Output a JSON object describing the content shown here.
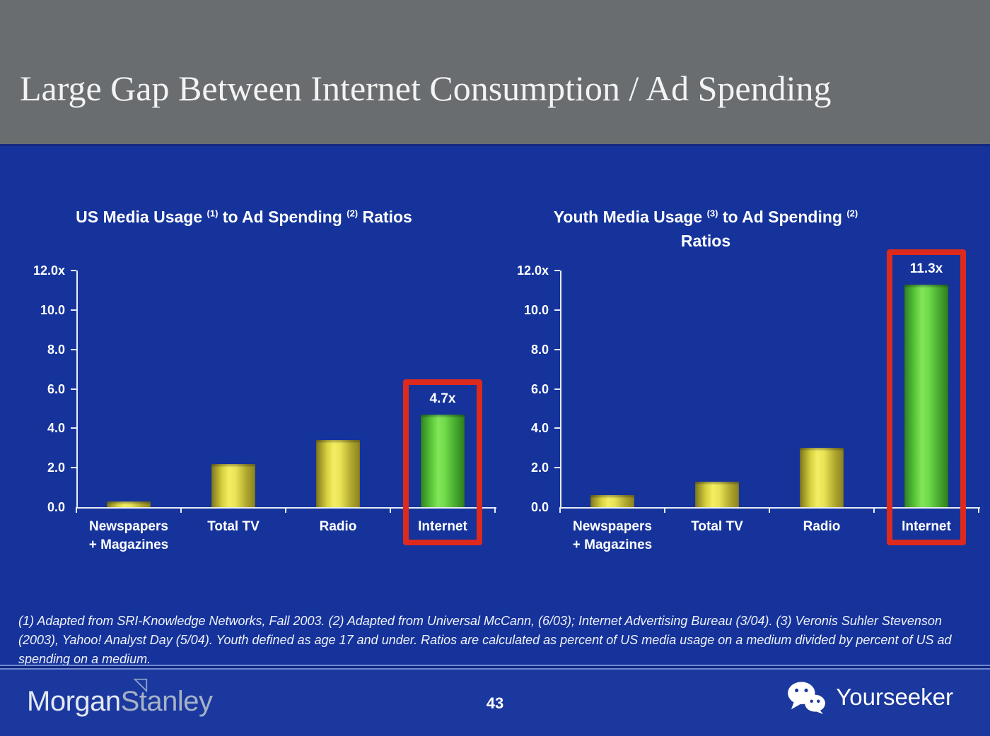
{
  "slide": {
    "title": "Large Gap Between Internet Consumption / Ad Spending",
    "footnote": "(1) Adapted from SRI-Knowledge Networks, Fall 2003.  (2) Adapted from Universal McCann, (6/03); Internet Advertising Bureau (3/04). (3) Veronis Suhler Stevenson (2003), Yahoo! Analyst Day (5/04).  Youth defined as age 17 and under.  Ratios are calculated as percent of US media usage on a medium divided by percent of US ad spending on a medium.",
    "page_number": "43"
  },
  "footer": {
    "brand_left_part1": "Morgan",
    "brand_left_part2": "Stanley",
    "brand_right": "Yourseeker"
  },
  "colors": {
    "background_blue": "#15339b",
    "footer_blue": "#1b389e",
    "header_gray": "#6a6d70",
    "axis_white": "#e8ecf8",
    "bar_yellow_center": "#f3ee63",
    "bar_yellow_edge": "#7d761e",
    "bar_green_center": "#83e659",
    "bar_green_edge": "#2f8220",
    "highlight_red": "#dd2a1d"
  },
  "chart_data": [
    {
      "type": "bar",
      "title": "US Media Usage (1) to Ad Spending (2) Ratios",
      "title_parts": {
        "p1": "US Media Usage ",
        "s1": "(1)",
        "p2": " to Ad Spending ",
        "s2": "(2)",
        "p3": " Ratios"
      },
      "categories": [
        "Newspapers + Magazines",
        "Total TV",
        "Radio",
        "Internet"
      ],
      "category_lines": [
        [
          "Newspapers",
          "+ Magazines"
        ],
        [
          "Total TV"
        ],
        [
          "Radio"
        ],
        [
          "Internet"
        ]
      ],
      "category_ids": [
        "newspapers-magazines",
        "total-tv",
        "radio",
        "internet"
      ],
      "values": [
        0.3,
        2.2,
        3.4,
        4.7
      ],
      "bar_colors": [
        "yellow",
        "yellow",
        "yellow",
        "green"
      ],
      "highlight_index": 3,
      "highlight_label": "4.7x",
      "ylim": [
        0,
        12
      ],
      "yticks": [
        "12.0x",
        "10.0",
        "8.0",
        "6.0",
        "4.0",
        "2.0",
        "0.0"
      ],
      "ytick_values": [
        12,
        10,
        8,
        6,
        4,
        2,
        0
      ],
      "xlabel": "",
      "ylabel": "",
      "grid": false,
      "legend": false
    },
    {
      "type": "bar",
      "title": "Youth Media Usage (3) to Ad Spending (2) Ratios",
      "title_parts": {
        "p1": "Youth Media Usage ",
        "s1": "(3)",
        "p2": " to Ad Spending ",
        "s2": "(2)",
        "p3": ""
      },
      "title_line2": "Ratios",
      "categories": [
        "Newspapers + Magazines",
        "Total TV",
        "Radio",
        "Internet"
      ],
      "category_lines": [
        [
          "Newspapers",
          "+ Magazines"
        ],
        [
          "Total TV"
        ],
        [
          "Radio"
        ],
        [
          "Internet"
        ]
      ],
      "category_ids": [
        "newspapers-magazines",
        "total-tv",
        "radio",
        "internet"
      ],
      "values": [
        0.6,
        1.3,
        3.0,
        11.3
      ],
      "bar_colors": [
        "yellow",
        "yellow",
        "yellow",
        "green"
      ],
      "highlight_index": 3,
      "highlight_label": "11.3x",
      "ylim": [
        0,
        12
      ],
      "yticks": [
        "12.0x",
        "10.0",
        "8.0",
        "6.0",
        "4.0",
        "2.0",
        "0.0"
      ],
      "ytick_values": [
        12,
        10,
        8,
        6,
        4,
        2,
        0
      ],
      "xlabel": "",
      "ylabel": "",
      "grid": false,
      "legend": false
    }
  ]
}
